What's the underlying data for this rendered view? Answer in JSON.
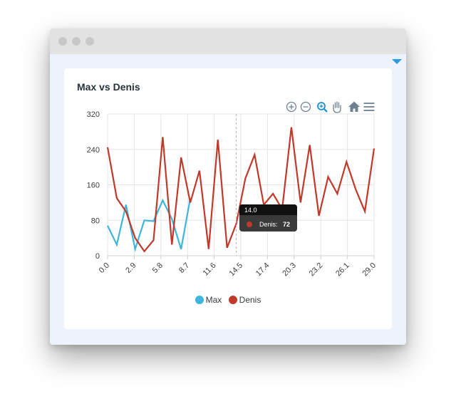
{
  "card": {
    "title": "Max vs Denis"
  },
  "tooltip": {
    "x_label": "14.0",
    "series_label": "Denis:",
    "value": "72"
  },
  "toolbar": {
    "icons": [
      "zoom-in-icon",
      "zoom-out-icon",
      "selection-zoom-icon",
      "pan-icon",
      "reset-home-icon",
      "menu-icon"
    ]
  },
  "colors": {
    "accent": "#2a9be0",
    "max": "#3eb5dc",
    "denis": "#c0392b"
  },
  "chart_data": {
    "type": "line",
    "title": "Max vs Denis",
    "xlabel": "",
    "ylabel": "",
    "xlim": [
      0,
      29
    ],
    "ylim": [
      0,
      320
    ],
    "x_ticks": [
      "0.0",
      "2.9",
      "5.8",
      "8.7",
      "11.6",
      "14.5",
      "17.4",
      "20.3",
      "23.2",
      "26.1",
      "29.0"
    ],
    "y_ticks": [
      "0",
      "80",
      "160",
      "240",
      "320"
    ],
    "grid": true,
    "legend_position": "bottom",
    "series": [
      {
        "name": "Max",
        "color": "#3eb5dc",
        "x": [
          0,
          1,
          2,
          3,
          4,
          5,
          6,
          7,
          8,
          9
        ],
        "y": [
          68,
          25,
          115,
          15,
          80,
          78,
          125,
          83,
          15,
          130
        ]
      },
      {
        "name": "Denis",
        "color": "#c0392b",
        "x": [
          0,
          1,
          2,
          3,
          4,
          5,
          6,
          7,
          8,
          9,
          10,
          11,
          12,
          13,
          14,
          15,
          16,
          17,
          18,
          19,
          20,
          21,
          22,
          23,
          24,
          25,
          26,
          27,
          28,
          29
        ],
        "y": [
          245,
          130,
          100,
          40,
          10,
          35,
          268,
          25,
          222,
          120,
          192,
          15,
          262,
          18,
          72,
          175,
          228,
          115,
          140,
          105,
          290,
          120,
          250,
          90,
          178,
          140,
          212,
          150,
          100,
          242
        ]
      }
    ]
  }
}
